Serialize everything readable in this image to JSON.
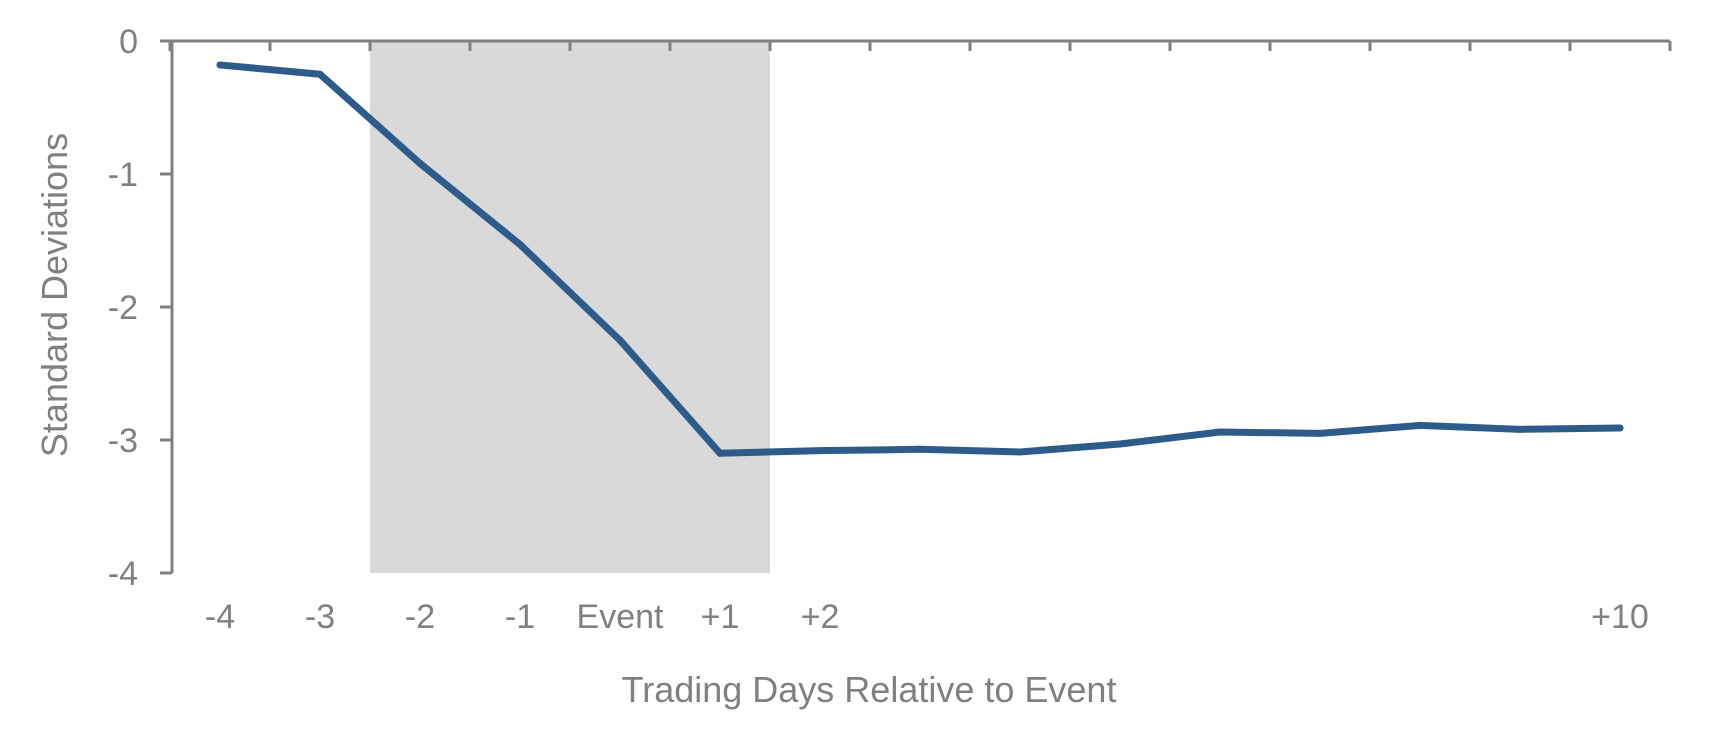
{
  "chart_data": {
    "type": "line",
    "title": "",
    "xlabel": "Trading Days Relative to Event",
    "ylabel": "Standard  Deviations",
    "x_tick_labels": [
      "-4",
      "-3",
      "-2",
      "-1",
      "Event",
      "+1",
      "+2",
      "",
      "",
      "",
      "",
      "",
      "",
      "",
      "+10"
    ],
    "x": [
      -4,
      -3,
      -2,
      -1,
      0,
      1,
      2,
      3,
      4,
      5,
      6,
      7,
      8,
      9,
      10
    ],
    "series": [
      {
        "name": "",
        "values": [
          -0.18,
          -0.25,
          -0.92,
          -1.53,
          -2.25,
          -3.1,
          -3.08,
          -3.07,
          -3.09,
          -3.03,
          -2.94,
          -2.95,
          -2.89,
          -2.92,
          -2.91
        ]
      }
    ],
    "ylim": [
      -4,
      0
    ],
    "y_ticks": [
      0,
      -1,
      -2,
      -3,
      -4
    ],
    "y_tick_labels": [
      "0",
      "-1",
      "-2",
      "-3",
      "-4"
    ],
    "shaded_region": {
      "x_start": -2.5,
      "x_end": 1.5
    },
    "grid": false,
    "legend": "none",
    "colors": {
      "line": "#2e5c8a",
      "shade": "#d9d9d9",
      "axis": "#808080",
      "text": "#808080"
    }
  }
}
